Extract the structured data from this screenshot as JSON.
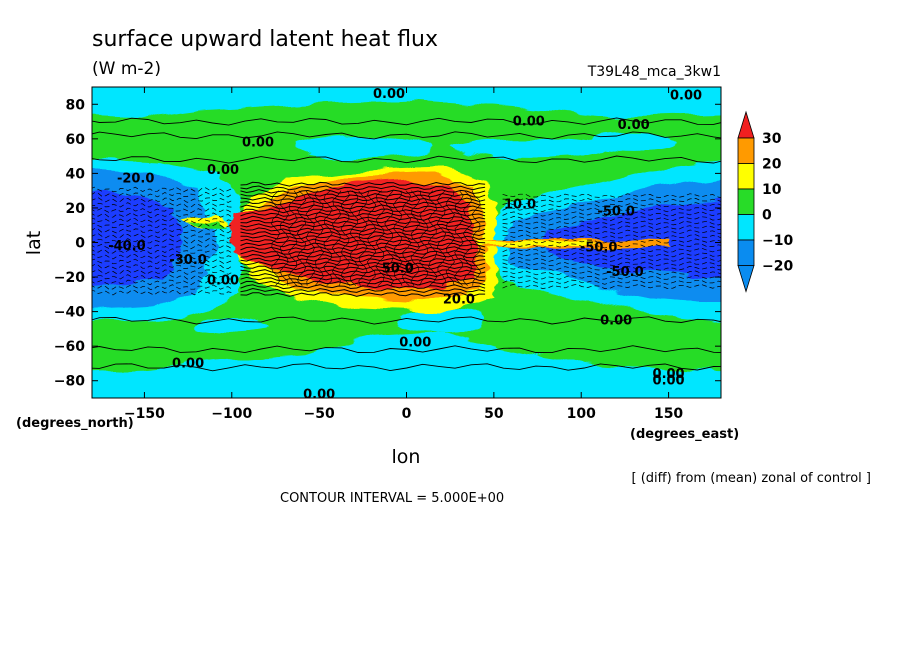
{
  "chart_data": {
    "type": "heatmap",
    "title": "surface upward latent heat flux",
    "units": "(W m-2)",
    "experiment": "T39L48_mca_3kw1",
    "xlabel": "lon",
    "ylabel": "lat",
    "x_unit_label": "(degrees_east)",
    "y_unit_label": "(degrees_north)",
    "xlim": [
      -180,
      180
    ],
    "ylim": [
      -90,
      90
    ],
    "x_ticks": [
      -150,
      -100,
      -50,
      0,
      50,
      100,
      150
    ],
    "y_ticks": [
      -80,
      -60,
      -40,
      -20,
      0,
      20,
      40,
      60,
      80
    ],
    "grid": false,
    "colorbar": {
      "placement": "right",
      "levels": [
        30,
        20,
        10,
        0,
        -10,
        -20
      ],
      "colors": [
        "#f02020",
        "#ff9a00",
        "#ffff00",
        "#28dc28",
        "#00e6ff",
        "#0a8cf0",
        "#1e3cff"
      ]
    },
    "contour_interval_label": "CONTOUR INTERVAL = 5.000E+00",
    "note": "[ (diff) from (mean) zonal of control ]",
    "contour_labels": [
      {
        "text": "0.00",
        "lon": -10,
        "lat": 86
      },
      {
        "text": "0.00",
        "lon": 160,
        "lat": 85
      },
      {
        "text": "0.00",
        "lon": 70,
        "lat": 70
      },
      {
        "text": "0.00",
        "lon": 130,
        "lat": 68
      },
      {
        "text": "0.00",
        "lon": -85,
        "lat": 58
      },
      {
        "text": "0.00",
        "lon": -105,
        "lat": 42
      },
      {
        "text": "-20.0",
        "lon": -155,
        "lat": 37
      },
      {
        "text": "-40.0",
        "lon": -160,
        "lat": -2
      },
      {
        "text": "-30.0",
        "lon": -125,
        "lat": -10
      },
      {
        "text": "0.00",
        "lon": -105,
        "lat": -22
      },
      {
        "text": "20.0",
        "lon": 30,
        "lat": -33
      },
      {
        "text": "50.0",
        "lon": -5,
        "lat": -15
      },
      {
        "text": "10.0",
        "lon": 65,
        "lat": 22
      },
      {
        "text": "-50.0",
        "lon": 120,
        "lat": 18
      },
      {
        "text": "-50.0",
        "lon": 110,
        "lat": -3
      },
      {
        "text": "-50.0",
        "lon": 125,
        "lat": -17
      },
      {
        "text": "0.00",
        "lon": 120,
        "lat": -45
      },
      {
        "text": "0.00",
        "lon": 5,
        "lat": -58
      },
      {
        "text": "0.00",
        "lon": -125,
        "lat": -70
      },
      {
        "text": "0.00",
        "lon": 150,
        "lat": -76
      },
      {
        "text": "0.00",
        "lon": 150,
        "lat": -80
      },
      {
        "text": "0.00",
        "lon": -50,
        "lat": -88
      }
    ]
  }
}
